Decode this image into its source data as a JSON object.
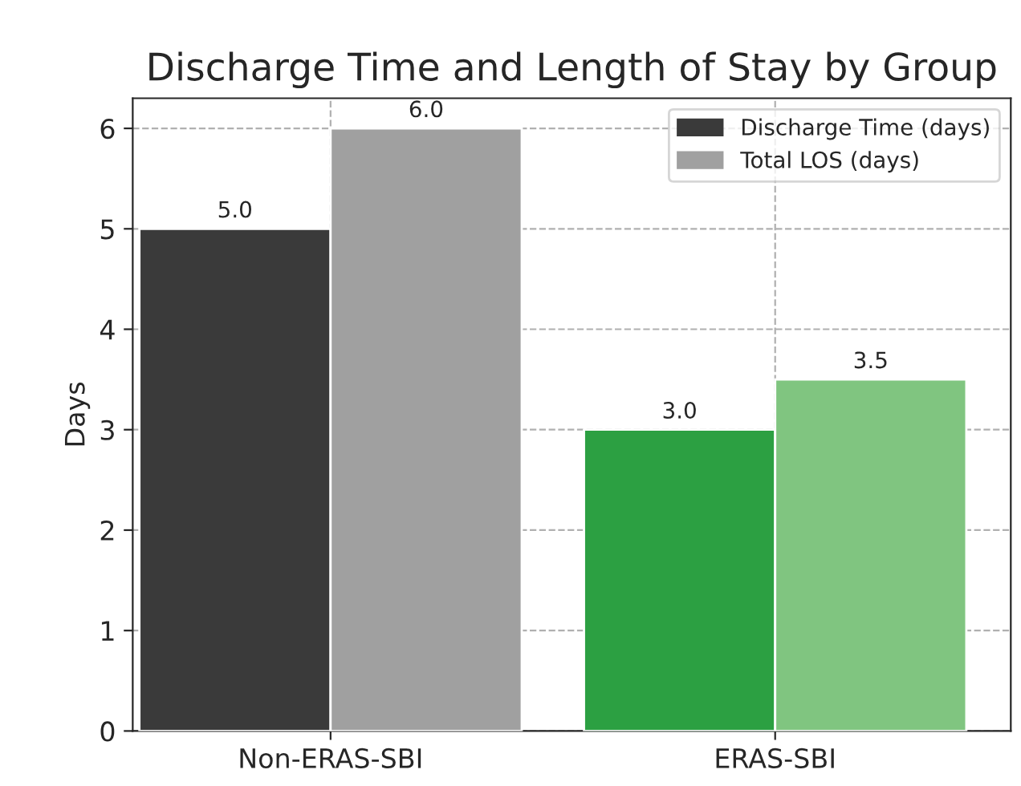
{
  "chart_data": {
    "type": "bar",
    "title": "Discharge Time and Length of Stay by Group",
    "ylabel": "Days",
    "categories": [
      "Non-ERAS-SBI",
      "ERAS-SBI"
    ],
    "series": [
      {
        "name": "Discharge Time (days)",
        "color": "#3a3a3a",
        "colors": [
          "#3a3a3a",
          "#2ca042"
        ],
        "values": [
          5.0,
          3.0
        ],
        "value_labels": [
          "5.0",
          "3.0"
        ]
      },
      {
        "name": "Total LOS (days)",
        "color": "#a0a0a0",
        "colors": [
          "#a0a0a0",
          "#80c580"
        ],
        "values": [
          6.0,
          3.5
        ],
        "value_labels": [
          "6.0",
          "3.5"
        ]
      }
    ],
    "ylim": [
      0,
      6.3
    ],
    "yticks": [
      0,
      1,
      2,
      3,
      4,
      5,
      6
    ],
    "grid": true,
    "legend": "top right"
  }
}
